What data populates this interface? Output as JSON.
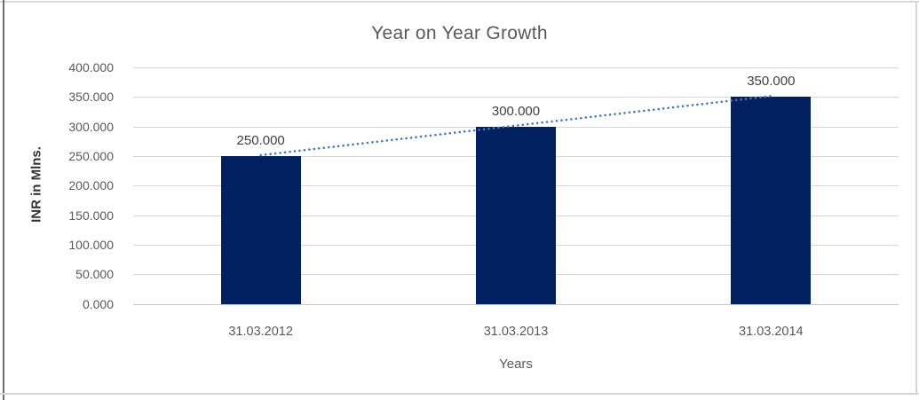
{
  "window": {
    "background": "#ffffff",
    "border_color": "#d6d6d6",
    "left_edge_color": "#6e6e6e"
  },
  "chart_data": {
    "type": "bar",
    "title": "Year on Year Growth",
    "xlabel": "Years",
    "ylabel": "INR in Mlns.",
    "categories": [
      "31.03.2012",
      "31.03.2013",
      "31.03.2014"
    ],
    "values": [
      250,
      300,
      350
    ],
    "data_labels": [
      "250.000",
      "300.000",
      "350.000"
    ],
    "y_tick_labels": [
      "400.000",
      "350.000",
      "300.000",
      "250.000",
      "200.000",
      "150.000",
      "100.000",
      "50.000",
      "0.000"
    ],
    "y_tick_values": [
      400,
      350,
      300,
      250,
      200,
      150,
      100,
      50,
      0
    ],
    "ylim": [
      0,
      400
    ],
    "grid": true,
    "legend": false,
    "bar_color": "#002060",
    "gridline_color": "#d7d7d7",
    "axis_line_color": "#c6c6c6",
    "title_color": "#595959",
    "tick_label_color": "#595959",
    "data_label_color": "#3f3f3f",
    "trendline": {
      "type": "linear",
      "style": "dotted",
      "color": "#4479c2",
      "from_value": 250,
      "to_value": 350
    }
  }
}
